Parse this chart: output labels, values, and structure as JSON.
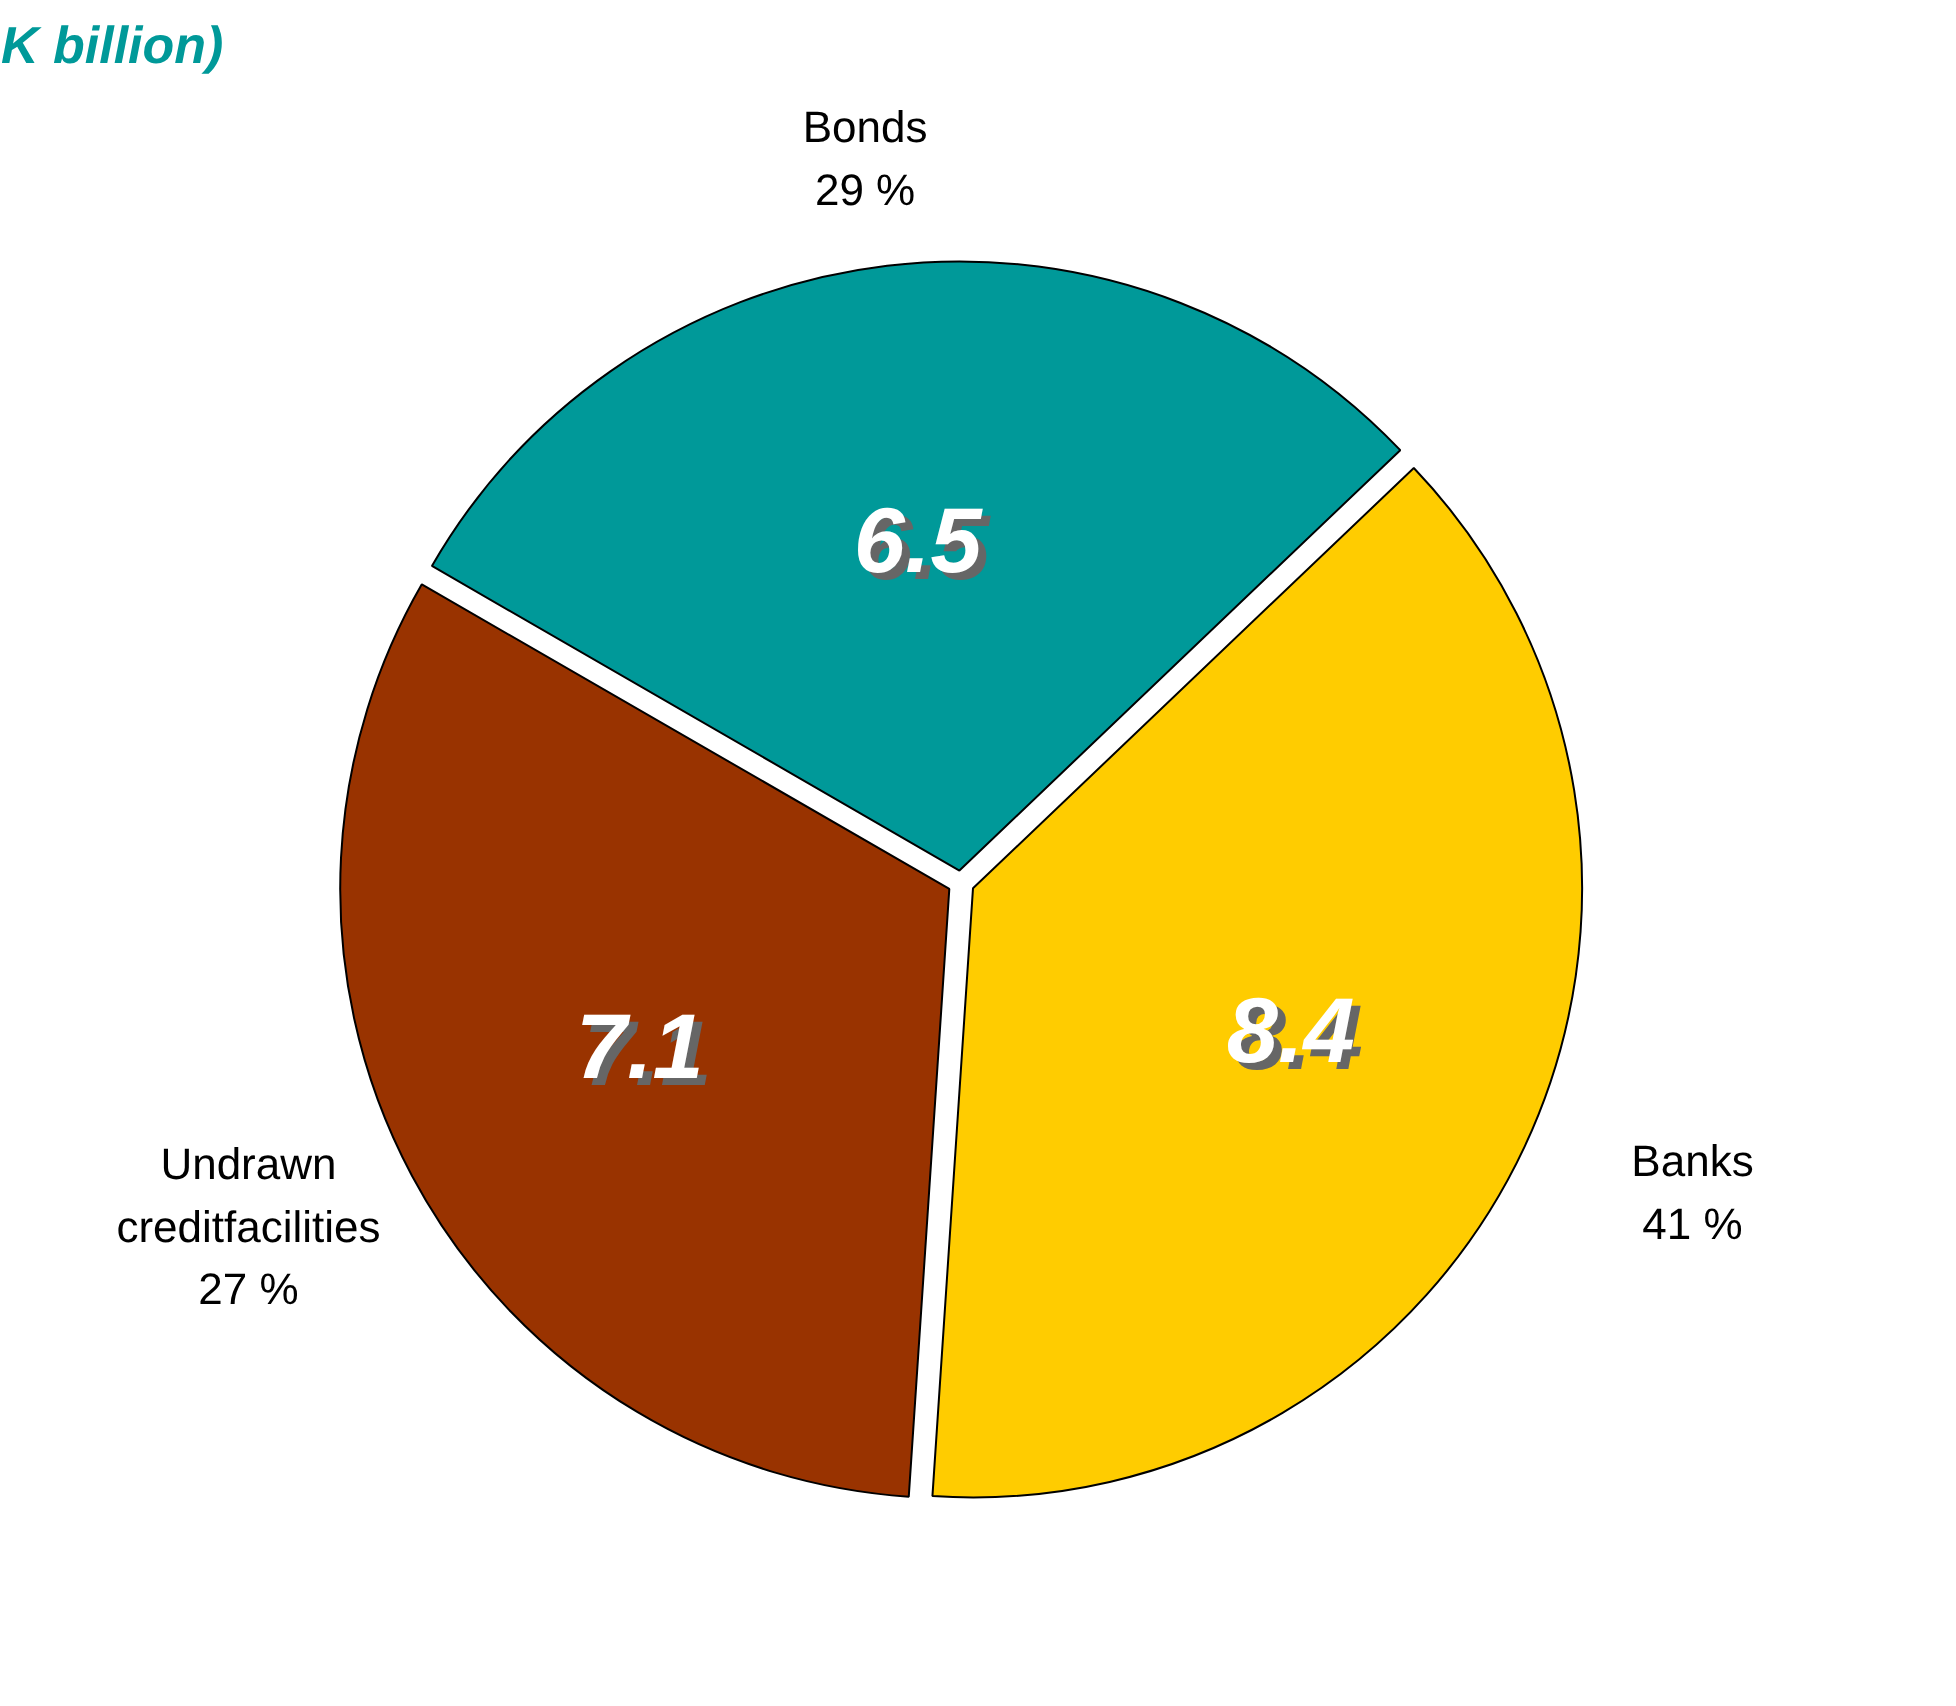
{
  "chart_data": {
    "type": "pie",
    "title": "K billion)",
    "categories": [
      "Bonds",
      "Banks",
      "Undrawn\ncreditfacilities"
    ],
    "values": [
      6.5,
      8.4,
      7.1
    ],
    "colors": [
      "#009999",
      "#ffcc00",
      "#993300"
    ],
    "data_labels": true,
    "annotations": [
      "29 %",
      "41 %",
      "27 %"
    ]
  }
}
